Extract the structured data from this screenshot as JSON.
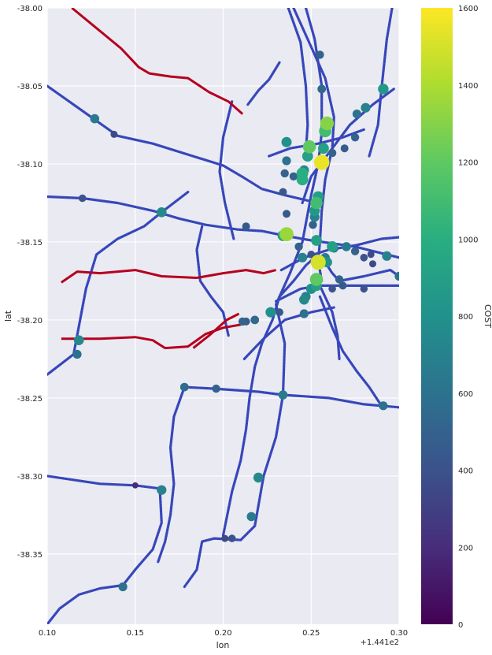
{
  "chart_data": {
    "type": "scatter",
    "xlabel": "lon",
    "ylabel": "lat",
    "x_offset_label": "+1.441e2",
    "x_ticks": [
      "0.10",
      "0.15",
      "0.20",
      "0.25",
      "0.30"
    ],
    "y_ticks": [
      "-38.00",
      "-38.05",
      "-38.10",
      "-38.15",
      "-38.20",
      "-38.25",
      "-38.30",
      "-38.35"
    ],
    "xlim": [
      0.1,
      0.3
    ],
    "ylim": [
      -38.395,
      -38.0
    ],
    "colorbar": {
      "label": "COST",
      "ticks": [
        "0",
        "200",
        "400",
        "600",
        "800",
        "1000",
        "1200",
        "1400",
        "1600"
      ],
      "range": [
        0,
        1600
      ],
      "colormap": "viridis"
    },
    "grid": true,
    "background": "#eaeaf2",
    "rail_line_color": "#3a4bbf",
    "highlight_line_color": "#b5001f",
    "highlight_lines": [
      [
        [
          0.114,
          -38.0
        ],
        [
          0.128,
          -38.013
        ],
        [
          0.142,
          -38.026
        ],
        [
          0.152,
          -38.038
        ],
        [
          0.158,
          -38.042
        ],
        [
          0.17,
          -38.044
        ],
        [
          0.18,
          -38.045
        ],
        [
          0.184,
          -38.048
        ],
        [
          0.192,
          -38.054
        ],
        [
          0.203,
          -38.06
        ],
        [
          0.211,
          -38.068
        ]
      ],
      [
        [
          0.108,
          -38.176
        ],
        [
          0.117,
          -38.169
        ],
        [
          0.13,
          -38.17
        ],
        [
          0.15,
          -38.168
        ],
        [
          0.165,
          -38.172
        ],
        [
          0.185,
          -38.173
        ],
        [
          0.2,
          -38.17
        ],
        [
          0.213,
          -38.168
        ],
        [
          0.223,
          -38.17
        ],
        [
          0.23,
          -38.168
        ]
      ],
      [
        [
          0.108,
          -38.212
        ],
        [
          0.13,
          -38.212
        ],
        [
          0.15,
          -38.211
        ],
        [
          0.16,
          -38.213
        ],
        [
          0.167,
          -38.218
        ],
        [
          0.18,
          -38.217
        ],
        [
          0.19,
          -38.209
        ],
        [
          0.2,
          -38.205
        ],
        [
          0.21,
          -38.203
        ]
      ],
      [
        [
          0.183,
          -38.218
        ],
        [
          0.192,
          -38.21
        ],
        [
          0.202,
          -38.2
        ],
        [
          0.209,
          -38.196
        ]
      ]
    ],
    "lines": [
      [
        [
          0.1,
          -38.05
        ],
        [
          0.125,
          -38.07
        ],
        [
          0.14,
          -38.082
        ],
        [
          0.16,
          -38.087
        ],
        [
          0.18,
          -38.094
        ],
        [
          0.2,
          -38.101
        ],
        [
          0.212,
          -38.109
        ],
        [
          0.222,
          -38.116
        ],
        [
          0.235,
          -38.12
        ],
        [
          0.25,
          -38.124
        ]
      ],
      [
        [
          0.1,
          -38.121
        ],
        [
          0.12,
          -38.122
        ],
        [
          0.14,
          -38.125
        ],
        [
          0.16,
          -38.13
        ],
        [
          0.175,
          -38.135
        ],
        [
          0.19,
          -38.139
        ],
        [
          0.208,
          -38.142
        ],
        [
          0.222,
          -38.143
        ],
        [
          0.235,
          -38.146
        ],
        [
          0.25,
          -38.149
        ],
        [
          0.275,
          -38.153
        ],
        [
          0.3,
          -38.16
        ]
      ],
      [
        [
          0.1,
          -38.235
        ],
        [
          0.115,
          -38.222
        ],
        [
          0.117,
          -38.21
        ],
        [
          0.122,
          -38.18
        ],
        [
          0.128,
          -38.158
        ],
        [
          0.14,
          -38.148
        ],
        [
          0.155,
          -38.14
        ],
        [
          0.165,
          -38.131
        ],
        [
          0.18,
          -38.118
        ]
      ],
      [
        [
          0.1,
          -38.3
        ],
        [
          0.13,
          -38.305
        ],
        [
          0.15,
          -38.306
        ],
        [
          0.164,
          -38.308
        ],
        [
          0.165,
          -38.33
        ],
        [
          0.16,
          -38.347
        ],
        [
          0.15,
          -38.36
        ],
        [
          0.143,
          -38.37
        ],
        [
          0.13,
          -38.372
        ],
        [
          0.118,
          -38.376
        ],
        [
          0.107,
          -38.385
        ],
        [
          0.1,
          -38.395
        ]
      ],
      [
        [
          0.178,
          -38.371
        ],
        [
          0.185,
          -38.36
        ],
        [
          0.188,
          -38.342
        ],
        [
          0.195,
          -38.34
        ],
        [
          0.21,
          -38.341
        ],
        [
          0.218,
          -38.332
        ],
        [
          0.223,
          -38.3
        ],
        [
          0.23,
          -38.275
        ],
        [
          0.234,
          -38.248
        ],
        [
          0.235,
          -38.215
        ],
        [
          0.23,
          -38.19
        ],
        [
          0.238,
          -38.17
        ],
        [
          0.245,
          -38.15
        ],
        [
          0.25,
          -38.12
        ],
        [
          0.254,
          -38.1
        ],
        [
          0.256,
          -38.08
        ],
        [
          0.256,
          -38.05
        ],
        [
          0.252,
          -38.02
        ],
        [
          0.247,
          -38.0
        ]
      ],
      [
        [
          0.2,
          -38.338
        ],
        [
          0.205,
          -38.31
        ],
        [
          0.21,
          -38.29
        ],
        [
          0.213,
          -38.27
        ],
        [
          0.215,
          -38.25
        ],
        [
          0.218,
          -38.23
        ],
        [
          0.222,
          -38.215
        ],
        [
          0.228,
          -38.2
        ],
        [
          0.232,
          -38.185
        ],
        [
          0.24,
          -38.175
        ],
        [
          0.247,
          -38.165
        ],
        [
          0.252,
          -38.16
        ],
        [
          0.258,
          -38.163
        ],
        [
          0.262,
          -38.17
        ],
        [
          0.266,
          -38.175
        ],
        [
          0.28,
          -38.172
        ],
        [
          0.295,
          -38.168
        ],
        [
          0.3,
          -38.172
        ]
      ],
      [
        [
          0.178,
          -38.243
        ],
        [
          0.195,
          -38.244
        ],
        [
          0.22,
          -38.246
        ],
        [
          0.234,
          -38.248
        ],
        [
          0.26,
          -38.25
        ],
        [
          0.28,
          -38.254
        ],
        [
          0.3,
          -38.256
        ]
      ],
      [
        [
          0.178,
          -38.243
        ],
        [
          0.172,
          -38.262
        ],
        [
          0.17,
          -38.282
        ],
        [
          0.172,
          -38.305
        ],
        [
          0.17,
          -38.325
        ],
        [
          0.167,
          -38.342
        ],
        [
          0.163,
          -38.355
        ]
      ],
      [
        [
          0.24,
          -38.0
        ],
        [
          0.25,
          -38.025
        ],
        [
          0.258,
          -38.045
        ],
        [
          0.263,
          -38.07
        ],
        [
          0.262,
          -38.09
        ],
        [
          0.258,
          -38.11
        ],
        [
          0.256,
          -38.13
        ],
        [
          0.255,
          -38.15
        ],
        [
          0.254,
          -38.162
        ],
        [
          0.256,
          -38.175
        ]
      ],
      [
        [
          0.296,
          -38.0
        ],
        [
          0.293,
          -38.02
        ],
        [
          0.29,
          -38.052
        ],
        [
          0.288,
          -38.075
        ],
        [
          0.283,
          -38.095
        ]
      ],
      [
        [
          0.297,
          -38.052
        ],
        [
          0.285,
          -38.062
        ],
        [
          0.272,
          -38.075
        ],
        [
          0.262,
          -38.09
        ],
        [
          0.25,
          -38.108
        ],
        [
          0.245,
          -38.125
        ]
      ],
      [
        [
          0.255,
          -38.185
        ],
        [
          0.262,
          -38.205
        ],
        [
          0.268,
          -38.22
        ],
        [
          0.276,
          -38.233
        ],
        [
          0.283,
          -38.243
        ],
        [
          0.29,
          -38.255
        ]
      ],
      [
        [
          0.232,
          -38.035
        ],
        [
          0.226,
          -38.046
        ],
        [
          0.22,
          -38.053
        ],
        [
          0.214,
          -38.062
        ]
      ],
      [
        [
          0.205,
          -38.06
        ],
        [
          0.2,
          -38.083
        ],
        [
          0.198,
          -38.105
        ],
        [
          0.201,
          -38.125
        ],
        [
          0.206,
          -38.148
        ]
      ],
      [
        [
          0.237,
          -38.0
        ],
        [
          0.244,
          -38.022
        ],
        [
          0.247,
          -38.05
        ],
        [
          0.248,
          -38.075
        ],
        [
          0.247,
          -38.092
        ]
      ],
      [
        [
          0.188,
          -38.14
        ],
        [
          0.185,
          -38.155
        ],
        [
          0.187,
          -38.175
        ],
        [
          0.193,
          -38.185
        ],
        [
          0.2,
          -38.195
        ],
        [
          0.203,
          -38.21
        ]
      ],
      [
        [
          0.212,
          -38.225
        ],
        [
          0.223,
          -38.212
        ],
        [
          0.235,
          -38.2
        ],
        [
          0.25,
          -38.195
        ],
        [
          0.263,
          -38.192
        ]
      ],
      [
        [
          0.23,
          -38.188
        ],
        [
          0.244,
          -38.18
        ],
        [
          0.255,
          -38.178
        ],
        [
          0.268,
          -38.178
        ],
        [
          0.285,
          -38.178
        ],
        [
          0.3,
          -38.178
        ]
      ],
      [
        [
          0.226,
          -38.095
        ],
        [
          0.238,
          -38.09
        ],
        [
          0.254,
          -38.087
        ],
        [
          0.268,
          -38.083
        ],
        [
          0.28,
          -38.078
        ]
      ],
      [
        [
          0.233,
          -38.168
        ],
        [
          0.246,
          -38.16
        ],
        [
          0.26,
          -38.155
        ],
        [
          0.276,
          -38.152
        ],
        [
          0.29,
          -38.148
        ],
        [
          0.3,
          -38.147
        ]
      ],
      [
        [
          0.255,
          -38.178
        ],
        [
          0.262,
          -38.195
        ],
        [
          0.265,
          -38.21
        ],
        [
          0.266,
          -38.225
        ]
      ]
    ],
    "stations": [
      [
        0.127,
        -38.071,
        650
      ],
      [
        0.138,
        -38.081,
        350
      ],
      [
        0.118,
        -38.213,
        750
      ],
      [
        0.117,
        -38.222,
        600
      ],
      [
        0.12,
        -38.122,
        400
      ],
      [
        0.165,
        -38.131,
        750
      ],
      [
        0.165,
        -38.309,
        700
      ],
      [
        0.15,
        -38.306,
        200
      ],
      [
        0.143,
        -38.371,
        600
      ],
      [
        0.196,
        -38.244,
        500
      ],
      [
        0.178,
        -38.243,
        550
      ],
      [
        0.234,
        -38.248,
        650
      ],
      [
        0.22,
        -38.301,
        750
      ],
      [
        0.216,
        -38.326,
        650
      ],
      [
        0.205,
        -38.34,
        400
      ],
      [
        0.201,
        -38.34,
        350
      ],
      [
        0.291,
        -38.255,
        600
      ],
      [
        0.291,
        -38.052,
        850
      ],
      [
        0.281,
        -38.064,
        700
      ],
      [
        0.276,
        -38.068,
        600
      ],
      [
        0.259,
        -38.074,
        1300
      ],
      [
        0.258,
        -38.079,
        1100
      ],
      [
        0.256,
        -38.099,
        1550
      ],
      [
        0.257,
        -38.09,
        900
      ],
      [
        0.249,
        -38.089,
        1200
      ],
      [
        0.248,
        -38.095,
        900
      ],
      [
        0.246,
        -38.104,
        700
      ],
      [
        0.245,
        -38.11,
        1000
      ],
      [
        0.24,
        -38.108,
        500
      ],
      [
        0.236,
        -38.086,
        800
      ],
      [
        0.236,
        -38.098,
        600
      ],
      [
        0.235,
        -38.106,
        500
      ],
      [
        0.234,
        -38.118,
        450
      ],
      [
        0.236,
        -38.132,
        450
      ],
      [
        0.236,
        -38.145,
        1350
      ],
      [
        0.234,
        -38.146,
        900
      ],
      [
        0.253,
        -38.125,
        1100
      ],
      [
        0.254,
        -38.121,
        900
      ],
      [
        0.252,
        -38.13,
        850
      ],
      [
        0.252,
        -38.134,
        700
      ],
      [
        0.251,
        -38.139,
        500
      ],
      [
        0.253,
        -38.149,
        900
      ],
      [
        0.254,
        -38.163,
        1500
      ],
      [
        0.253,
        -38.174,
        1200
      ],
      [
        0.253,
        -38.178,
        900
      ],
      [
        0.25,
        -38.18,
        800
      ],
      [
        0.246,
        -38.187,
        750
      ],
      [
        0.246,
        -38.196,
        600
      ],
      [
        0.263,
        -38.154,
        600
      ],
      [
        0.27,
        -38.153,
        650
      ],
      [
        0.275,
        -38.156,
        500
      ],
      [
        0.28,
        -38.16,
        400
      ],
      [
        0.284,
        -38.158,
        350
      ],
      [
        0.293,
        -38.159,
        700
      ],
      [
        0.3,
        -38.172,
        600
      ],
      [
        0.258,
        -38.16,
        650
      ],
      [
        0.259,
        -38.163,
        800
      ],
      [
        0.262,
        -38.153,
        900
      ],
      [
        0.245,
        -38.16,
        700
      ],
      [
        0.243,
        -38.153,
        500
      ],
      [
        0.25,
        -38.158,
        400
      ],
      [
        0.232,
        -38.195,
        450
      ],
      [
        0.227,
        -38.195,
        800
      ],
      [
        0.218,
        -38.2,
        550
      ],
      [
        0.211,
        -38.201,
        500
      ],
      [
        0.213,
        -38.201,
        450
      ],
      [
        0.213,
        -38.14,
        450
      ],
      [
        0.245,
        -38.106,
        1000
      ],
      [
        0.266,
        -38.174,
        500
      ],
      [
        0.268,
        -38.178,
        450
      ],
      [
        0.262,
        -38.18,
        400
      ],
      [
        0.28,
        -38.18,
        400
      ],
      [
        0.285,
        -38.164,
        350
      ],
      [
        0.255,
        -38.03,
        500
      ],
      [
        0.256,
        -38.052,
        550
      ],
      [
        0.262,
        -38.093,
        500
      ],
      [
        0.275,
        -38.083,
        500
      ],
      [
        0.269,
        -38.09,
        450
      ],
      [
        0.247,
        -38.185,
        700
      ]
    ]
  }
}
